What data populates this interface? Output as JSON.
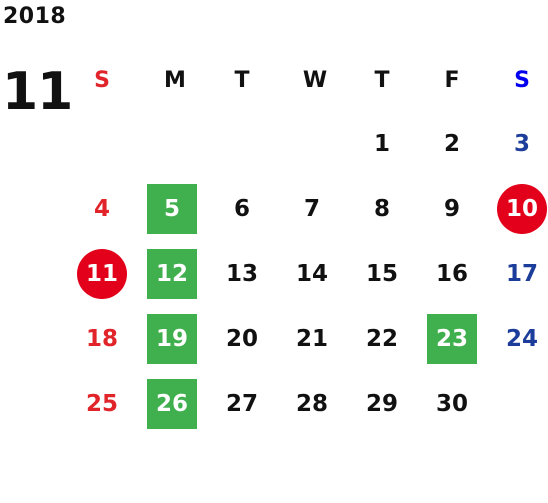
{
  "calendar": {
    "year": "2018",
    "month": "11",
    "weekdays": [
      "S",
      "M",
      "T",
      "W",
      "T",
      "F",
      "S"
    ],
    "weeks": [
      [
        {
          "day": "",
          "style": "sun"
        },
        {
          "day": "",
          "style": ""
        },
        {
          "day": "",
          "style": ""
        },
        {
          "day": "",
          "style": ""
        },
        {
          "day": "1",
          "style": ""
        },
        {
          "day": "2",
          "style": ""
        },
        {
          "day": "3",
          "style": "sat"
        }
      ],
      [
        {
          "day": "4",
          "style": "sun"
        },
        {
          "day": "5",
          "style": "green"
        },
        {
          "day": "6",
          "style": ""
        },
        {
          "day": "7",
          "style": ""
        },
        {
          "day": "8",
          "style": ""
        },
        {
          "day": "9",
          "style": ""
        },
        {
          "day": "10",
          "style": "holiday"
        }
      ],
      [
        {
          "day": "11",
          "style": "holiday"
        },
        {
          "day": "12",
          "style": "green"
        },
        {
          "day": "13",
          "style": ""
        },
        {
          "day": "14",
          "style": ""
        },
        {
          "day": "15",
          "style": ""
        },
        {
          "day": "16",
          "style": ""
        },
        {
          "day": "17",
          "style": "sat"
        }
      ],
      [
        {
          "day": "18",
          "style": "sun"
        },
        {
          "day": "19",
          "style": "green"
        },
        {
          "day": "20",
          "style": ""
        },
        {
          "day": "21",
          "style": ""
        },
        {
          "day": "22",
          "style": ""
        },
        {
          "day": "23",
          "style": "green"
        },
        {
          "day": "24",
          "style": "sat"
        }
      ],
      [
        {
          "day": "25",
          "style": "sun"
        },
        {
          "day": "26",
          "style": "green"
        },
        {
          "day": "27",
          "style": ""
        },
        {
          "day": "28",
          "style": ""
        },
        {
          "day": "29",
          "style": ""
        },
        {
          "day": "30",
          "style": ""
        },
        {
          "day": "",
          "style": "sat"
        }
      ]
    ],
    "colors": {
      "sunday": "#e0242a",
      "saturday": "#1d3d9b",
      "highlight_green": "#3fb04d",
      "holiday_red": "#e2001a"
    }
  }
}
